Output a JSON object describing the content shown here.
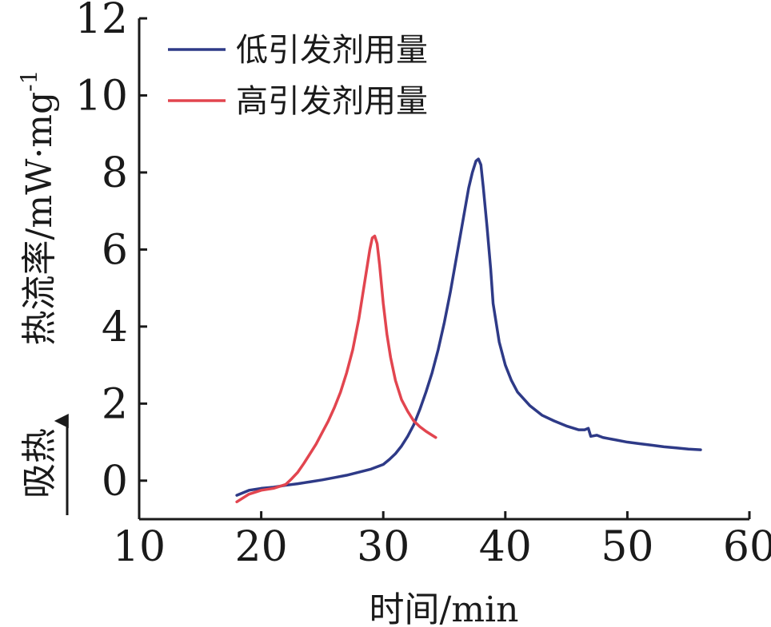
{
  "chart_data": {
    "type": "line",
    "xlabel": "时间/min",
    "ylabel": "热流率/mW·mg",
    "ylabel_sup": "-1",
    "endotherm_label": "吸热",
    "xlim": [
      10,
      60
    ],
    "ylim": [
      -1,
      12
    ],
    "xticks": [
      10,
      20,
      30,
      40,
      50,
      60
    ],
    "yticks": [
      0,
      2,
      4,
      6,
      8,
      10,
      12
    ],
    "grid": false,
    "legend_position": "top-left",
    "series": [
      {
        "name": "低引发剂用量",
        "color": "#2e3a87",
        "x": [
          18.0,
          19.0,
          20.0,
          21.0,
          22.0,
          23.0,
          24.0,
          25.0,
          26.0,
          27.0,
          28.0,
          29.0,
          30.0,
          30.5,
          31.0,
          31.5,
          32.0,
          32.5,
          33.0,
          33.5,
          34.0,
          34.5,
          35.0,
          35.5,
          36.0,
          36.5,
          37.0,
          37.3,
          37.6,
          37.8,
          38.0,
          38.2,
          38.5,
          38.8,
          39.0,
          39.5,
          40.0,
          40.5,
          41.0,
          42.0,
          43.0,
          44.0,
          45.0,
          46.0,
          46.5,
          46.8,
          47.0,
          47.5,
          48.0,
          49.0,
          50.0,
          51.0,
          52.0,
          53.0,
          54.0,
          55.0,
          56.0
        ],
        "values": [
          -0.38,
          -0.25,
          -0.2,
          -0.17,
          -0.12,
          -0.08,
          -0.03,
          0.02,
          0.08,
          0.14,
          0.22,
          0.3,
          0.42,
          0.55,
          0.7,
          0.9,
          1.15,
          1.45,
          1.85,
          2.3,
          2.8,
          3.4,
          4.1,
          4.9,
          5.8,
          6.7,
          7.6,
          8.0,
          8.3,
          8.35,
          8.2,
          7.6,
          6.6,
          5.5,
          4.6,
          3.6,
          3.0,
          2.6,
          2.3,
          1.95,
          1.7,
          1.55,
          1.42,
          1.32,
          1.32,
          1.36,
          1.15,
          1.18,
          1.12,
          1.06,
          1.0,
          0.96,
          0.92,
          0.88,
          0.85,
          0.82,
          0.8
        ]
      },
      {
        "name": "高引发剂用量",
        "color": "#e2454f",
        "x": [
          18.0,
          19.0,
          20.0,
          21.0,
          22.0,
          22.5,
          23.0,
          23.5,
          24.0,
          24.5,
          25.0,
          25.5,
          26.0,
          26.5,
          27.0,
          27.5,
          28.0,
          28.3,
          28.6,
          28.9,
          29.1,
          29.3,
          29.5,
          29.7,
          30.0,
          30.3,
          30.6,
          31.0,
          31.5,
          32.0,
          32.5,
          33.0,
          33.5,
          34.0,
          34.3
        ],
        "values": [
          -0.55,
          -0.35,
          -0.25,
          -0.2,
          -0.1,
          0.05,
          0.22,
          0.45,
          0.7,
          0.95,
          1.25,
          1.55,
          1.9,
          2.3,
          2.8,
          3.4,
          4.2,
          4.8,
          5.4,
          6.0,
          6.3,
          6.35,
          6.15,
          5.6,
          4.6,
          3.8,
          3.2,
          2.6,
          2.1,
          1.8,
          1.55,
          1.4,
          1.28,
          1.18,
          1.12
        ]
      }
    ]
  }
}
